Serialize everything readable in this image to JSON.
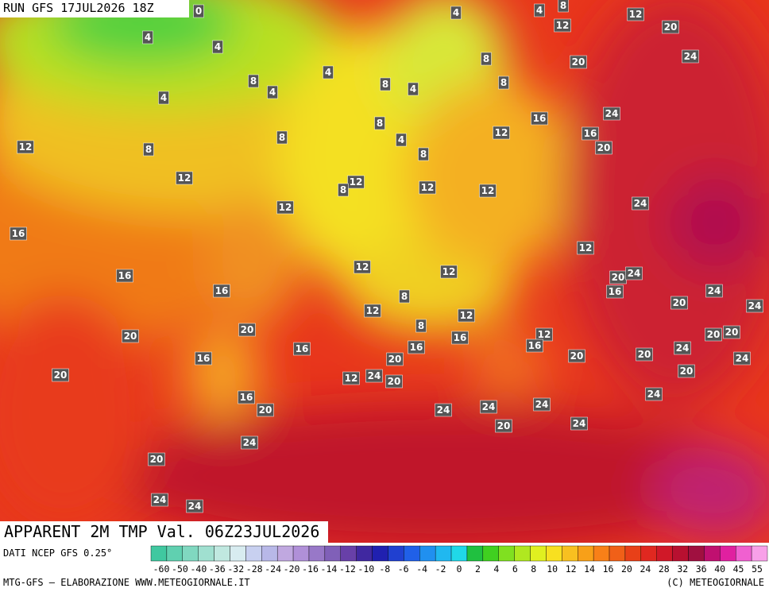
{
  "header": {
    "run": "RUN GFS 17JUL2026 18Z"
  },
  "map": {
    "title": "APPARENT 2M TMP Val. 06Z23JUL2026",
    "contour_labels": [
      0,
      4,
      4,
      8,
      12,
      20,
      12,
      4,
      4,
      8,
      20,
      24,
      8,
      4,
      8,
      4,
      8,
      4,
      4,
      16,
      24,
      8,
      4,
      12,
      16,
      20,
      12,
      8,
      8,
      8,
      12,
      12,
      8,
      12,
      12,
      12,
      24,
      16,
      12,
      12,
      12,
      16,
      20,
      24,
      16,
      8,
      16,
      20,
      24,
      24,
      12,
      12,
      20,
      20,
      8,
      16,
      12,
      20,
      20,
      16,
      16,
      16,
      24,
      16,
      20,
      20,
      20,
      24,
      20,
      12,
      24,
      20,
      20,
      16,
      24,
      20,
      24,
      24,
      24,
      20,
      24,
      24,
      20,
      24,
      24
    ]
  },
  "legend": {
    "source": "DATI NCEP GFS 0.25°",
    "ticks": [
      -60,
      -50,
      -40,
      -36,
      -32,
      -28,
      -24,
      -20,
      -16,
      -14,
      -12,
      -10,
      -8,
      -6,
      -4,
      -2,
      0,
      2,
      4,
      6,
      8,
      10,
      12,
      14,
      16,
      20,
      24,
      28,
      32,
      36,
      40,
      45,
      55
    ]
  },
  "footer": {
    "left": "MTG-GFS — ELABORAZIONE WWW.METEOGIORNALE.IT",
    "right": "(C) METEOGIORNALE"
  }
}
